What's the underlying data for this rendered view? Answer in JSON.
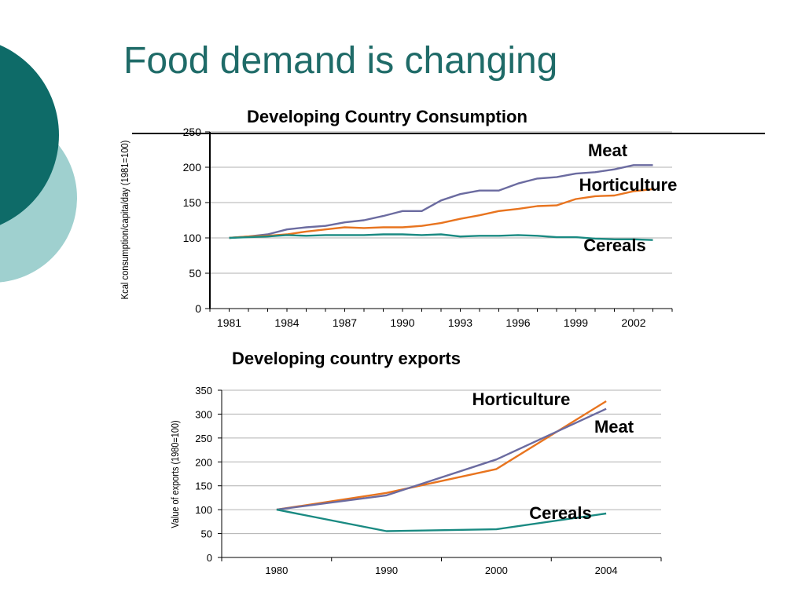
{
  "slide": {
    "title": "Food demand is changing"
  },
  "colors": {
    "title": "#1f6b68",
    "deco_dark": "#0e6b68",
    "deco_light": "#9fd0cf",
    "meat": "#6b6ba0",
    "horticulture": "#e8741f",
    "cereals": "#1a8a82",
    "grid": "#b0b0b0"
  },
  "chart_data": [
    {
      "type": "line",
      "title": "Developing Country Consumption",
      "ylabel": "Kcal consumption/capita/day (1981=100)",
      "xlabel": "",
      "ylim": [
        0,
        250
      ],
      "yticks": [
        "0",
        "50",
        "100",
        "150",
        "200",
        "250"
      ],
      "xticks": [
        "1981",
        "1984",
        "1987",
        "1990",
        "1993",
        "1996",
        "1999",
        "2002"
      ],
      "grid": true,
      "x": [
        1981,
        1982,
        1983,
        1984,
        1985,
        1986,
        1987,
        1988,
        1989,
        1990,
        1991,
        1992,
        1993,
        1994,
        1995,
        1996,
        1997,
        1998,
        1999,
        2000,
        2001,
        2002,
        2003
      ],
      "series": [
        {
          "name": "Meat",
          "values": [
            100,
            102,
            105,
            112,
            115,
            117,
            122,
            125,
            131,
            138,
            138,
            153,
            162,
            167,
            167,
            177,
            184,
            186,
            191,
            193,
            197,
            203,
            203
          ]
        },
        {
          "name": "Horticulture",
          "values": [
            100,
            102,
            103,
            105,
            109,
            112,
            115,
            114,
            115,
            115,
            117,
            121,
            127,
            132,
            138,
            141,
            145,
            146,
            155,
            159,
            160,
            166,
            169
          ]
        },
        {
          "name": "Cereals",
          "values": [
            100,
            101,
            102,
            104,
            103,
            104,
            104,
            104,
            105,
            105,
            104,
            105,
            102,
            103,
            103,
            104,
            103,
            101,
            101,
            99,
            98,
            98,
            97
          ]
        }
      ]
    },
    {
      "type": "line",
      "title": "Developing country exports",
      "ylabel": "Value of exports (1980=100)",
      "xlabel": "",
      "ylim": [
        0,
        350
      ],
      "yticks": [
        "0",
        "50",
        "100",
        "150",
        "200",
        "250",
        "300",
        "350"
      ],
      "categories": [
        "1980",
        "1990",
        "2000",
        "2004"
      ],
      "grid": true,
      "series": [
        {
          "name": "Horticulture",
          "values": [
            100,
            135,
            185,
            327
          ]
        },
        {
          "name": "Meat",
          "values": [
            100,
            130,
            205,
            311
          ]
        },
        {
          "name": "Cereals",
          "values": [
            100,
            55,
            59,
            92
          ]
        }
      ]
    }
  ]
}
